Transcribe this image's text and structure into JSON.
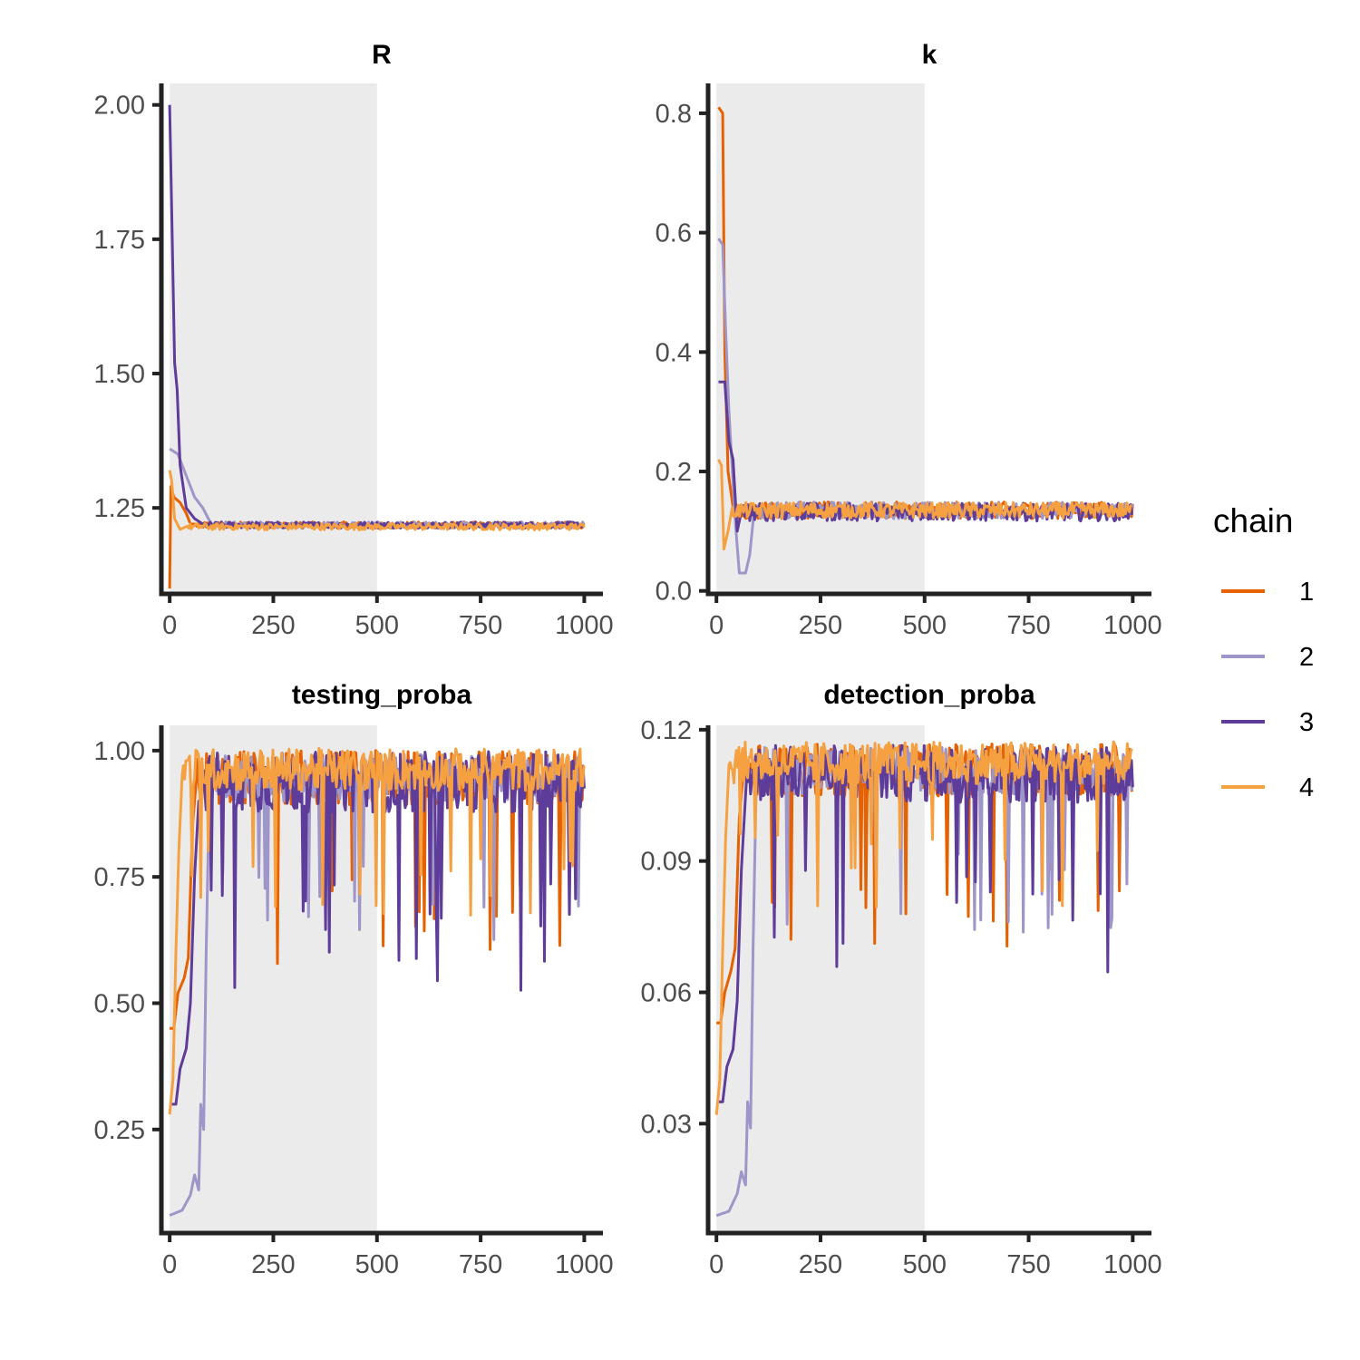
{
  "chart_data": {
    "type": "line",
    "legend": {
      "title": "chain",
      "placement": "right",
      "entries": [
        {
          "label": "1",
          "color": "#e66101"
        },
        {
          "label": "2",
          "color": "#9e95c8"
        },
        {
          "label": "3",
          "color": "#5e3c99"
        },
        {
          "label": "4",
          "color": "#f5a142"
        }
      ]
    },
    "warmup": {
      "from": 0,
      "to": 500,
      "color": "#ebebeb"
    },
    "grid": false,
    "panels": [
      {
        "title": "R",
        "xlim": [
          -20,
          1045
        ],
        "ylim": [
          1.09,
          2.04
        ],
        "xticks": [
          0,
          250,
          500,
          750,
          1000
        ],
        "xtick_labels": [
          "0",
          "250",
          "500",
          "750",
          "1000"
        ],
        "yticks": [
          1.25,
          1.5,
          1.75,
          2.0
        ],
        "ytick_labels": [
          "1.25",
          "1.50",
          "1.75",
          "2.00"
        ],
        "series": [
          {
            "chain": "1",
            "start": [
              [
                0,
                1.1
              ],
              [
                3,
                1.29
              ],
              [
                10,
                1.27
              ],
              [
                25,
                1.26
              ],
              [
                40,
                1.24
              ],
              [
                50,
                1.22
              ],
              [
                60,
                1.22
              ]
            ],
            "level": 1.218,
            "noise": 0.006
          },
          {
            "chain": "2",
            "start": [
              [
                0,
                1.36
              ],
              [
                20,
                1.35
              ],
              [
                40,
                1.31
              ],
              [
                60,
                1.27
              ],
              [
                80,
                1.25
              ],
              [
                100,
                1.22
              ],
              [
                120,
                1.22
              ]
            ],
            "level": 1.218,
            "noise": 0.006
          },
          {
            "chain": "3",
            "start": [
              [
                0,
                2.0
              ],
              [
                5,
                1.8
              ],
              [
                12,
                1.52
              ],
              [
                18,
                1.47
              ],
              [
                25,
                1.33
              ],
              [
                40,
                1.25
              ],
              [
                60,
                1.23
              ],
              [
                80,
                1.22
              ]
            ],
            "level": 1.218,
            "noise": 0.006
          },
          {
            "chain": "4",
            "start": [
              [
                0,
                1.32
              ],
              [
                5,
                1.3
              ],
              [
                12,
                1.23
              ],
              [
                25,
                1.21
              ],
              [
                40,
                1.215
              ]
            ],
            "level": 1.215,
            "noise": 0.006
          }
        ]
      },
      {
        "title": "k",
        "xlim": [
          -20,
          1045
        ],
        "ylim": [
          -0.005,
          0.85
        ],
        "xticks": [
          0,
          250,
          500,
          750,
          1000
        ],
        "xtick_labels": [
          "0",
          "250",
          "500",
          "750",
          "1000"
        ],
        "yticks": [
          0.0,
          0.2,
          0.4,
          0.6,
          0.8
        ],
        "ytick_labels": [
          "0.0",
          "0.2",
          "0.4",
          "0.6",
          "0.8"
        ],
        "series": [
          {
            "chain": "1",
            "start": [
              [
                5,
                0.81
              ],
              [
                15,
                0.8
              ],
              [
                20,
                0.4
              ],
              [
                28,
                0.2
              ],
              [
                40,
                0.14
              ]
            ],
            "level": 0.135,
            "noise": 0.014
          },
          {
            "chain": "2",
            "start": [
              [
                5,
                0.59
              ],
              [
                15,
                0.58
              ],
              [
                22,
                0.44
              ],
              [
                30,
                0.3
              ],
              [
                45,
                0.12
              ],
              [
                55,
                0.03
              ],
              [
                70,
                0.03
              ],
              [
                80,
                0.06
              ],
              [
                90,
                0.13
              ]
            ],
            "level": 0.135,
            "noise": 0.014
          },
          {
            "chain": "3",
            "start": [
              [
                5,
                0.35
              ],
              [
                20,
                0.35
              ],
              [
                30,
                0.25
              ],
              [
                40,
                0.22
              ],
              [
                50,
                0.1
              ],
              [
                62,
                0.14
              ]
            ],
            "level": 0.132,
            "noise": 0.015
          },
          {
            "chain": "4",
            "start": [
              [
                5,
                0.22
              ],
              [
                12,
                0.21
              ],
              [
                18,
                0.07
              ],
              [
                28,
                0.1
              ],
              [
                38,
                0.14
              ]
            ],
            "level": 0.135,
            "noise": 0.013
          }
        ]
      },
      {
        "title": "testing_proba",
        "xlim": [
          -20,
          1045
        ],
        "ylim": [
          0.045,
          1.05
        ],
        "xticks": [
          0,
          250,
          500,
          750,
          1000
        ],
        "xtick_labels": [
          "0",
          "250",
          "500",
          "750",
          "1000"
        ],
        "yticks": [
          0.25,
          0.5,
          0.75,
          1.0
        ],
        "ytick_labels": [
          "0.25",
          "0.50",
          "0.75",
          "1.00"
        ],
        "series": [
          {
            "chain": "1",
            "start": [
              [
                0,
                0.45
              ],
              [
                10,
                0.45
              ],
              [
                20,
                0.52
              ],
              [
                35,
                0.55
              ],
              [
                45,
                0.59
              ],
              [
                55,
                0.85
              ],
              [
                65,
                0.95
              ]
            ],
            "level": 0.93,
            "noise": 0.09
          },
          {
            "chain": "2",
            "start": [
              [
                0,
                0.08
              ],
              [
                30,
                0.09
              ],
              [
                50,
                0.12
              ],
              [
                60,
                0.16
              ],
              [
                70,
                0.13
              ],
              [
                75,
                0.3
              ],
              [
                82,
                0.25
              ],
              [
                88,
                0.6
              ],
              [
                95,
                0.9
              ]
            ],
            "level": 0.93,
            "noise": 0.08
          },
          {
            "chain": "3",
            "start": [
              [
                5,
                0.3
              ],
              [
                15,
                0.3
              ],
              [
                25,
                0.37
              ],
              [
                40,
                0.41
              ],
              [
                50,
                0.5
              ],
              [
                60,
                0.75
              ],
              [
                70,
                0.9
              ]
            ],
            "level": 0.92,
            "noise": 0.1
          },
          {
            "chain": "4",
            "start": [
              [
                0,
                0.28
              ],
              [
                8,
                0.35
              ],
              [
                15,
                0.6
              ],
              [
                22,
                0.8
              ],
              [
                30,
                0.95
              ]
            ],
            "level": 0.95,
            "noise": 0.07
          }
        ]
      },
      {
        "title": "detection_proba",
        "xlim": [
          -20,
          1045
        ],
        "ylim": [
          0.005,
          0.121
        ],
        "xticks": [
          0,
          250,
          500,
          750,
          1000
        ],
        "xtick_labels": [
          "0",
          "250",
          "500",
          "750",
          "1000"
        ],
        "yticks": [
          0.03,
          0.06,
          0.09,
          0.12
        ],
        "ytick_labels": [
          "0.03",
          "0.06",
          "0.09",
          "0.12"
        ],
        "series": [
          {
            "chain": "1",
            "start": [
              [
                0,
                0.053
              ],
              [
                10,
                0.053
              ],
              [
                20,
                0.06
              ],
              [
                35,
                0.065
              ],
              [
                45,
                0.07
              ],
              [
                55,
                0.1
              ],
              [
                65,
                0.11
              ]
            ],
            "level": 0.109,
            "noise": 0.01
          },
          {
            "chain": "2",
            "start": [
              [
                0,
                0.009
              ],
              [
                30,
                0.01
              ],
              [
                50,
                0.014
              ],
              [
                60,
                0.019
              ],
              [
                70,
                0.016
              ],
              [
                75,
                0.035
              ],
              [
                82,
                0.029
              ],
              [
                88,
                0.07
              ],
              [
                95,
                0.105
              ]
            ],
            "level": 0.109,
            "noise": 0.009
          },
          {
            "chain": "3",
            "start": [
              [
                5,
                0.035
              ],
              [
                15,
                0.035
              ],
              [
                25,
                0.043
              ],
              [
                40,
                0.047
              ],
              [
                50,
                0.058
              ],
              [
                60,
                0.088
              ],
              [
                70,
                0.105
              ]
            ],
            "level": 0.108,
            "noise": 0.011
          },
          {
            "chain": "4",
            "start": [
              [
                0,
                0.032
              ],
              [
                8,
                0.04
              ],
              [
                15,
                0.07
              ],
              [
                22,
                0.095
              ],
              [
                30,
                0.112
              ]
            ],
            "level": 0.111,
            "noise": 0.008
          }
        ]
      }
    ]
  }
}
